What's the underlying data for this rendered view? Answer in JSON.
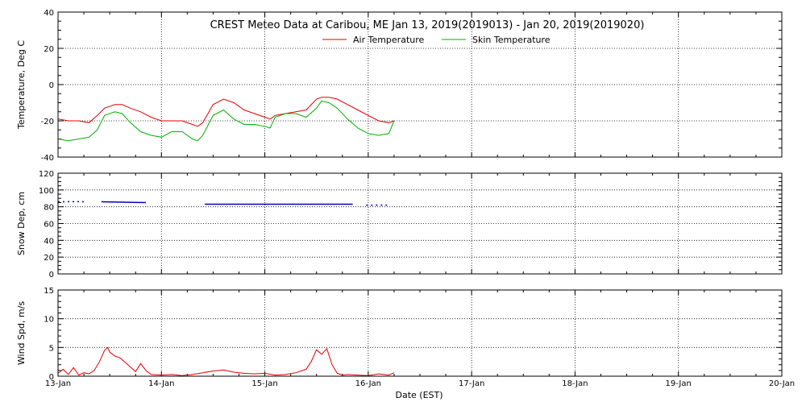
{
  "chart_data": {
    "type": "line",
    "title": "CREST Meteo Data at Caribou, ME   Jan 13, 2019(2019013) - Jan 20, 2019(2019020)",
    "xlabel": "Date (EST)",
    "x_ticks": [
      "13-Jan",
      "14-Jan",
      "15-Jan",
      "16-Jan",
      "17-Jan",
      "18-Jan",
      "19-Jan",
      "20-Jan"
    ],
    "xlim_days": [
      0,
      7
    ],
    "panels": [
      {
        "id": "temperature",
        "ylabel": "Temperature, Deg C",
        "ylim": [
          -40,
          40
        ],
        "yticks": [
          -40,
          -20,
          0,
          20,
          40
        ],
        "legend": [
          "Air Temperature",
          "Skin Temperature"
        ],
        "series": [
          {
            "name": "Air Temperature",
            "color": "#e00000",
            "x": [
              0,
              0.1,
              0.2,
              0.3,
              0.38,
              0.45,
              0.55,
              0.62,
              0.7,
              0.8,
              0.9,
              1.0,
              1.1,
              1.2,
              1.3,
              1.35,
              1.4,
              1.5,
              1.6,
              1.7,
              1.8,
              1.9,
              2.0,
              2.05,
              2.1,
              2.2,
              2.3,
              2.4,
              2.5,
              2.55,
              2.62,
              2.7,
              2.8,
              2.9,
              3.0,
              3.1,
              3.2,
              3.25
            ],
            "y": [
              -19,
              -20,
              -20,
              -21,
              -17,
              -13,
              -11,
              -11,
              -13,
              -15,
              -18,
              -20,
              -20,
              -20,
              -22,
              -23,
              -21,
              -11,
              -8,
              -10,
              -14,
              -16,
              -18,
              -19,
              -17,
              -16,
              -15,
              -14,
              -8,
              -7,
              -7,
              -8,
              -11,
              -14,
              -17,
              -20,
              -21,
              -20
            ]
          },
          {
            "name": "Skin Temperature",
            "color": "#00b000",
            "x": [
              0,
              0.1,
              0.2,
              0.3,
              0.38,
              0.45,
              0.55,
              0.62,
              0.7,
              0.8,
              0.9,
              1.0,
              1.1,
              1.2,
              1.3,
              1.35,
              1.4,
              1.5,
              1.6,
              1.7,
              1.8,
              1.9,
              2.0,
              2.05,
              2.1,
              2.2,
              2.3,
              2.4,
              2.5,
              2.55,
              2.62,
              2.7,
              2.8,
              2.9,
              3.0,
              3.1,
              3.2,
              3.25
            ],
            "y": [
              -30,
              -31,
              -30,
              -29,
              -25,
              -17,
              -15,
              -16,
              -21,
              -26,
              -28,
              -29,
              -26,
              -26,
              -30,
              -31,
              -28,
              -17,
              -14,
              -19,
              -22,
              -22,
              -23,
              -24,
              -18,
              -16,
              -16,
              -18,
              -13,
              -9,
              -10,
              -13,
              -19,
              -24,
              -27,
              -28,
              -27,
              -20
            ]
          }
        ]
      },
      {
        "id": "snow",
        "ylabel": "Snow Dep, cm",
        "ylim": [
          0,
          120
        ],
        "yticks": [
          0,
          20,
          40,
          60,
          80,
          100,
          120
        ],
        "series": [
          {
            "name": "",
            "color": "#0000c0",
            "style": "segments",
            "segments": [
              {
                "x": [
                  0.0,
                  0.25
                ],
                "y": [
                  86,
                  86
                ],
                "dotted": true
              },
              {
                "x": [
                  0.42,
                  0.85
                ],
                "y": [
                  86,
                  85
                ],
                "dotted": false
              },
              {
                "x": [
                  1.42,
                  2.85
                ],
                "y": [
                  83,
                  83
                ],
                "dotted": false
              },
              {
                "x": [
                  2.98,
                  3.2
                ],
                "y": [
                  82,
                  82
                ],
                "dotted": true
              }
            ]
          }
        ]
      },
      {
        "id": "wind",
        "ylabel": "Wind Spd, m/s",
        "ylim": [
          0,
          15
        ],
        "yticks": [
          0,
          5,
          10,
          15
        ],
        "series": [
          {
            "name": "",
            "color": "#e00000",
            "x": [
              0,
              0.05,
              0.1,
              0.15,
              0.2,
              0.25,
              0.3,
              0.35,
              0.4,
              0.45,
              0.48,
              0.5,
              0.55,
              0.6,
              0.65,
              0.7,
              0.75,
              0.8,
              0.85,
              0.9,
              1.0,
              1.1,
              1.2,
              1.3,
              1.4,
              1.5,
              1.6,
              1.7,
              1.8,
              1.9,
              2.0,
              2.1,
              2.2,
              2.3,
              2.4,
              2.45,
              2.5,
              2.55,
              2.6,
              2.65,
              2.7,
              2.75,
              2.8,
              2.9,
              3.0,
              3.1,
              3.2,
              3.25
            ],
            "y": [
              0.5,
              1.2,
              0.3,
              1.5,
              0.2,
              0.6,
              0.4,
              1.0,
              2.5,
              4.5,
              5.0,
              4.2,
              3.5,
              3.2,
              2.4,
              1.6,
              0.8,
              2.2,
              1.0,
              0.3,
              0.2,
              0.3,
              0.1,
              0.3,
              0.6,
              0.9,
              1.1,
              0.7,
              0.5,
              0.4,
              0.5,
              0.2,
              0.3,
              0.6,
              1.2,
              2.6,
              4.6,
              3.8,
              4.8,
              2.0,
              0.5,
              0.2,
              0.3,
              0.2,
              0.1,
              0.4,
              0.2,
              0.6
            ]
          }
        ]
      }
    ]
  }
}
